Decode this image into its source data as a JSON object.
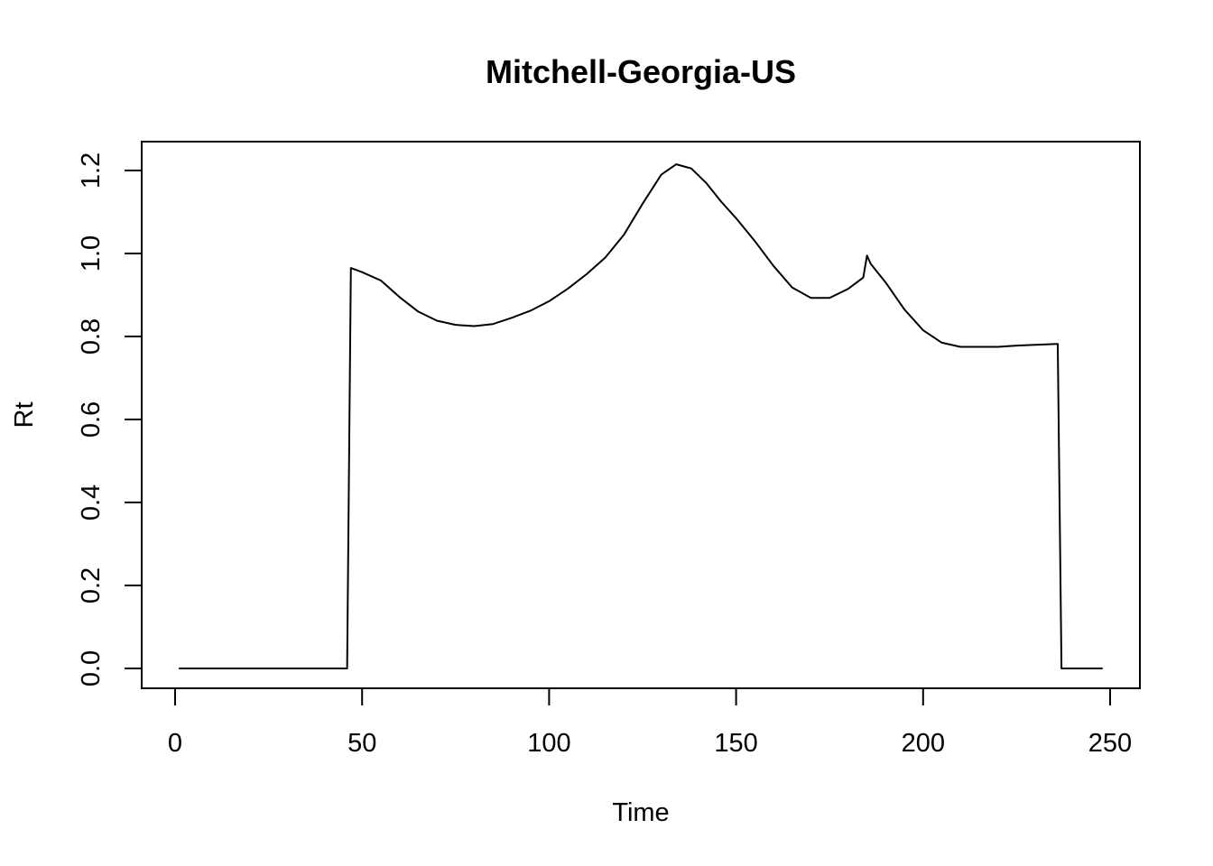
{
  "chart_data": {
    "type": "line",
    "title": "Mitchell-Georgia-US",
    "xlabel": "Time",
    "ylabel": "Rt",
    "xlim": [
      1,
      248
    ],
    "ylim": [
      0,
      1.22
    ],
    "xticks": [
      0,
      50,
      100,
      150,
      200,
      250
    ],
    "yticks": [
      0.0,
      0.2,
      0.4,
      0.6,
      0.8,
      1.0,
      1.2
    ],
    "xtick_labels": [
      "0",
      "50",
      "100",
      "150",
      "200",
      "250"
    ],
    "ytick_labels": [
      "0.0",
      "0.2",
      "0.4",
      "0.6",
      "0.8",
      "1.0",
      "1.2"
    ],
    "grid": false,
    "line_color": "#000000",
    "series": [
      {
        "x": [
          1,
          46,
          47,
          50,
          55,
          60,
          65,
          70,
          75,
          80,
          85,
          90,
          95,
          100,
          105,
          110,
          115,
          120,
          125,
          130,
          134,
          138,
          142,
          146,
          150,
          155,
          160,
          165,
          170,
          175,
          180,
          184,
          185,
          186,
          190,
          195,
          200,
          205,
          210,
          215,
          220,
          225,
          230,
          236,
          237,
          248
        ],
        "y": [
          0,
          0,
          0.965,
          0.955,
          0.935,
          0.895,
          0.86,
          0.838,
          0.828,
          0.825,
          0.83,
          0.845,
          0.862,
          0.885,
          0.915,
          0.95,
          0.99,
          1.045,
          1.12,
          1.19,
          1.215,
          1.205,
          1.17,
          1.125,
          1.085,
          1.03,
          0.97,
          0.918,
          0.893,
          0.893,
          0.915,
          0.942,
          0.995,
          0.975,
          0.93,
          0.865,
          0.815,
          0.785,
          0.775,
          0.775,
          0.775,
          0.778,
          0.78,
          0.782,
          0,
          0
        ]
      }
    ]
  }
}
